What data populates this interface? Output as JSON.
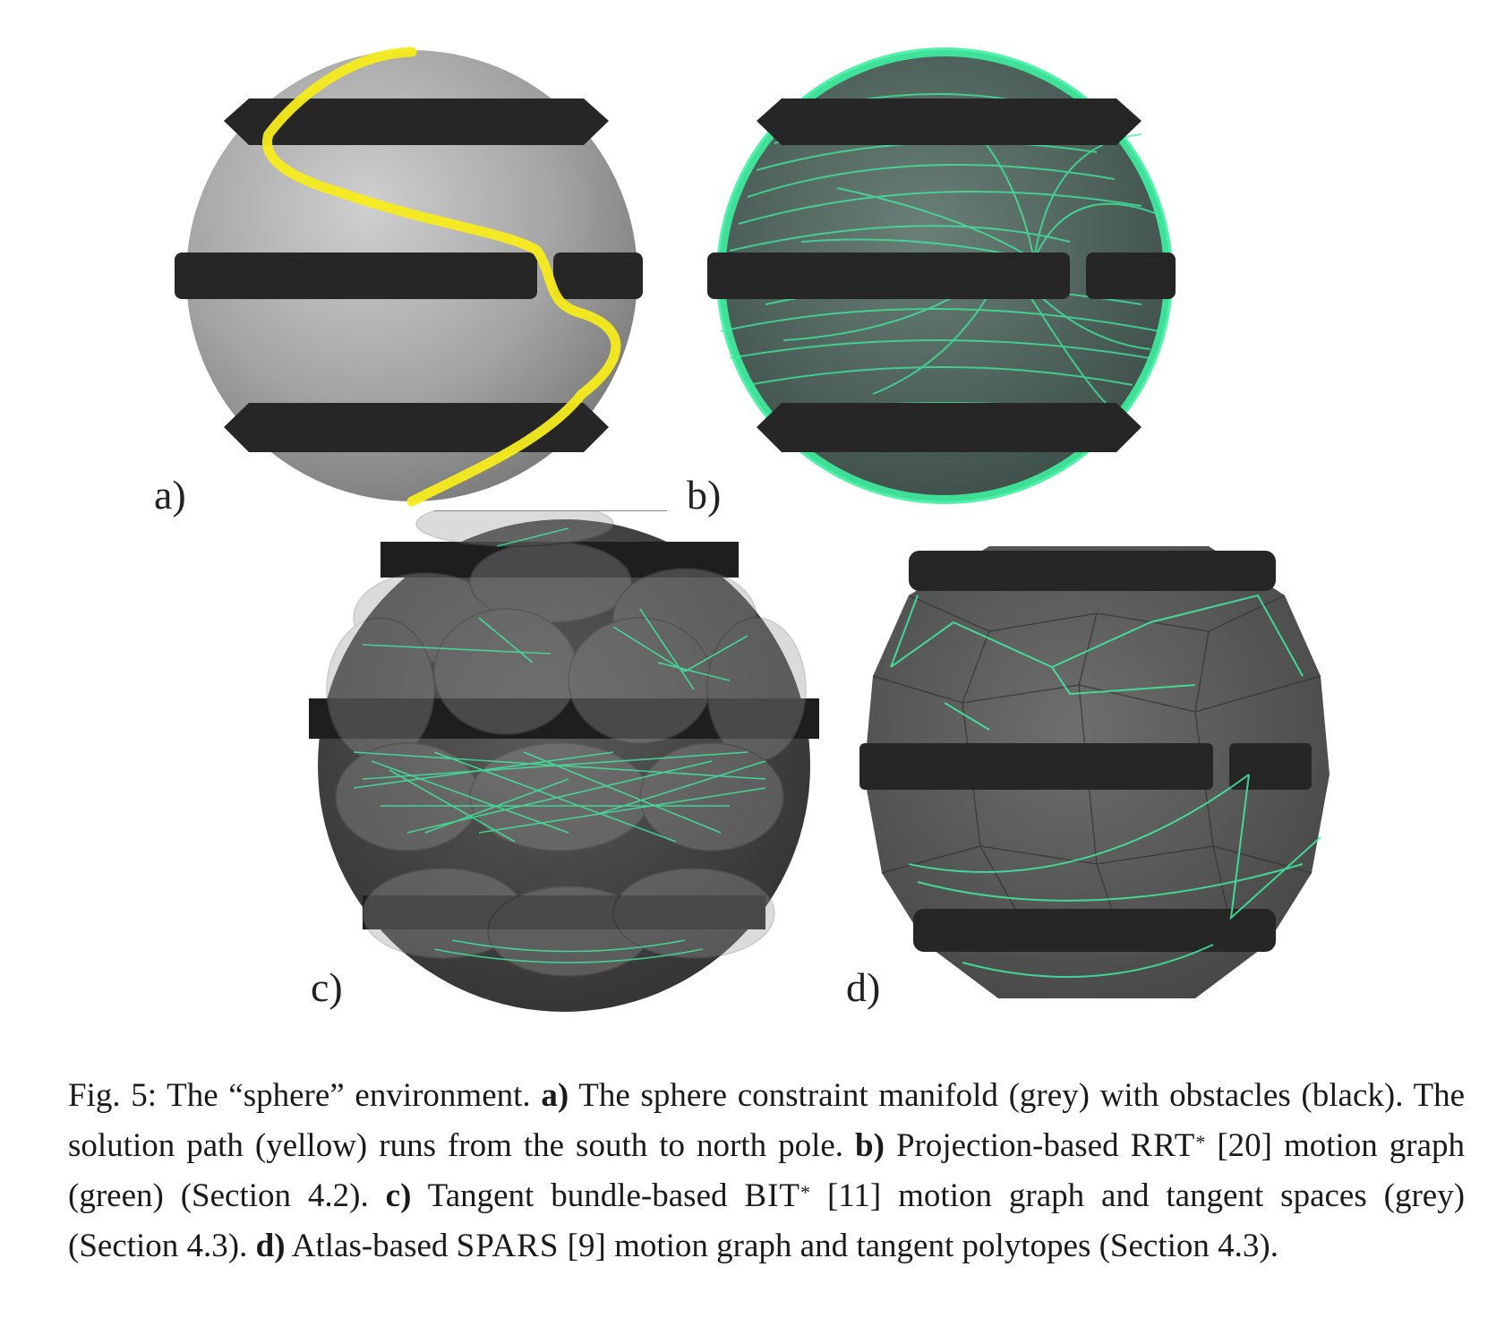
{
  "panels": {
    "a": {
      "label": "a)"
    },
    "b": {
      "label": "b)"
    },
    "c": {
      "label": "c)"
    },
    "d": {
      "label": "d)"
    }
  },
  "colors": {
    "sphere": "#9e9e9e",
    "obstacle": "#262626",
    "path": "#f6ec1c",
    "graph": "#3ef0a0"
  },
  "caption": {
    "fig": "Fig. 5: The “sphere” environment.",
    "a_key": "a)",
    "a_text": "The sphere constraint manifold (grey) with obstacles (black). The solution path (yellow) runs from the south to north pole.",
    "b_key": "b)",
    "b_pre": "Projection-based",
    "b_algo": "RRT",
    "b_star": "*",
    "b_text": "[20] motion graph (green) (Section 4.2).",
    "c_key": "c)",
    "c_pre": "Tangent bundle-based",
    "c_algo": "BIT",
    "c_star": "*",
    "c_text": "[11] motion graph and tangent spaces (grey) (Section 4.3).",
    "d_key": "d)",
    "d_pre": "Atlas-based",
    "d_algo": "SPARS",
    "d_text": "[9] motion graph and tangent polytopes (Section 4.3)."
  }
}
